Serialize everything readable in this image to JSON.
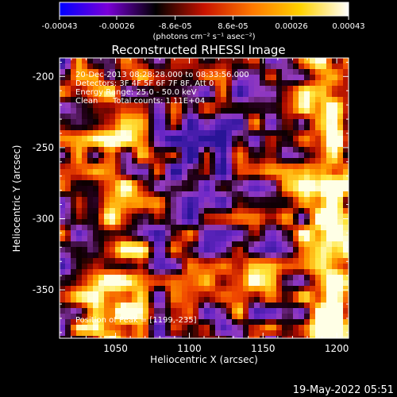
{
  "colorbar": {
    "tick_labels": [
      "-0.00043",
      "-0.00026",
      "-8.6e-05",
      "8.6e-05",
      "0.00026",
      "0.00043"
    ],
    "tick_values": [
      -0.00043,
      -0.00026,
      -8.6e-05,
      8.6e-05,
      0.00026,
      0.00043
    ],
    "range": [
      -0.00043,
      0.00043
    ],
    "unit_label": "(photons cm⁻² s⁻¹ asec⁻²)",
    "colors": [
      "#0000ff",
      "#7a00d8",
      "#000000",
      "#c81200",
      "#ff7800",
      "#ffd200",
      "#ffffff"
    ]
  },
  "chart_data": {
    "type": "heatmap",
    "title": "Reconstructed RHESSI Image",
    "xlabel": "Heliocentric X (arcsec)",
    "ylabel": "Heliocentric Y (arcsec)",
    "xlim": [
      1012,
      1208
    ],
    "ylim": [
      -384,
      -187
    ],
    "x_ticks": [
      1050,
      1100,
      1150,
      1200
    ],
    "x_tick_labels": [
      "1050",
      "1100",
      "1150",
      "1200"
    ],
    "y_ticks": [
      -200,
      -250,
      -300,
      -350
    ],
    "y_tick_labels": [
      "-200",
      "-250",
      "-300",
      "-350"
    ],
    "annotations": [
      "20-Dec-2013 08:28:28.000 to 08:33:56.000",
      "Detectors: 3F 4F 5F 6F 7F 8F, Att 0",
      "Energy Range: 25.0 - 50.0 keV",
      "Clean",
      "Total counts: 1.11E+04"
    ],
    "peak_label": "Position of Peak = [1199,-235]",
    "peak_position": [
      1199,
      -235
    ]
  },
  "footer": {
    "date": "19-May-2022 05:51"
  }
}
